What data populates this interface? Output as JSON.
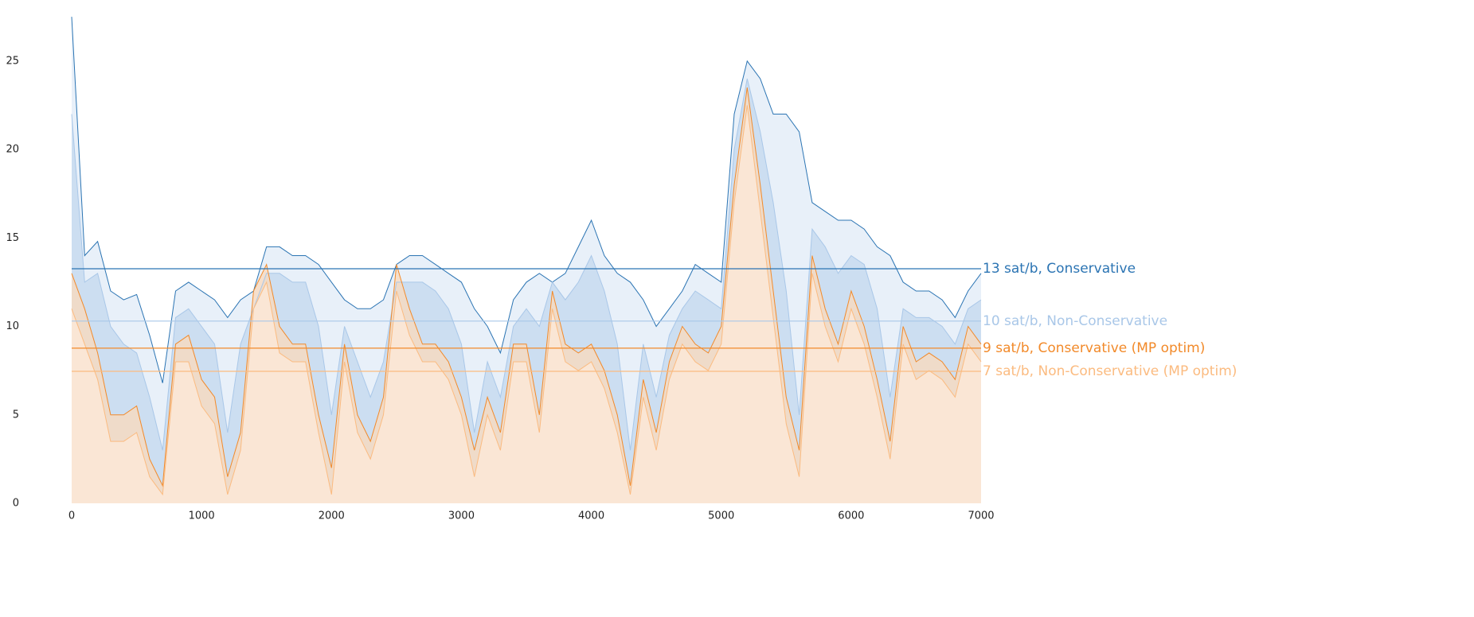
{
  "chart_data": {
    "type": "area-line",
    "x": [
      0,
      100,
      200,
      300,
      400,
      500,
      600,
      700,
      800,
      900,
      1000,
      1100,
      1200,
      1300,
      1400,
      1500,
      1600,
      1700,
      1800,
      1900,
      2000,
      2100,
      2200,
      2300,
      2400,
      2500,
      2600,
      2700,
      2800,
      2900,
      3000,
      3100,
      3200,
      3300,
      3400,
      3500,
      3600,
      3700,
      3800,
      3900,
      4000,
      4100,
      4200,
      4300,
      4400,
      4500,
      4600,
      4700,
      4800,
      4900,
      5000,
      5100,
      5200,
      5300,
      5400,
      5500,
      5600,
      5700,
      5800,
      5900,
      6000,
      6100,
      6200,
      6300,
      6400,
      6500,
      6600,
      6700,
      6800,
      6900,
      7000
    ],
    "xlim": [
      0,
      7000
    ],
    "ylim": [
      0,
      28
    ],
    "xticks": [
      0,
      1000,
      2000,
      3000,
      4000,
      5000,
      6000,
      7000
    ],
    "yticks": [
      0,
      5,
      10,
      15,
      20,
      25
    ],
    "series": [
      {
        "name": "Conservative",
        "color": "#2b74b3",
        "fill": "#e6eef8",
        "values": [
          27.5,
          14,
          14.8,
          12,
          11.5,
          11.8,
          9.5,
          6.8,
          12,
          12.5,
          12,
          11.5,
          10.5,
          11.5,
          12,
          14.5,
          14.5,
          14,
          14,
          13.5,
          12.5,
          11.5,
          11,
          11,
          11.5,
          13.5,
          14,
          14,
          13.5,
          13,
          12.5,
          11,
          10,
          8.5,
          11.5,
          12.5,
          13,
          12.5,
          13,
          14.5,
          16,
          14,
          13,
          12.5,
          11.5,
          10,
          11,
          12,
          13.5,
          13,
          12.5,
          22,
          25,
          24,
          22,
          22,
          21,
          17,
          16.5,
          16,
          16,
          15.5,
          14.5,
          14,
          12.5,
          12,
          12,
          11.5,
          10.5,
          12,
          13
        ]
      },
      {
        "name": "Non-Conservative",
        "color": "#a9c7e8",
        "fill": "#c9dcf0",
        "values": [
          22,
          12.5,
          13,
          10,
          9,
          8.5,
          6,
          3,
          10.5,
          11,
          10,
          9,
          4,
          9,
          11,
          13,
          13,
          12.5,
          12.5,
          10,
          5,
          10,
          8,
          6,
          8,
          12.5,
          12.5,
          12.5,
          12,
          11,
          9,
          4,
          8,
          6,
          10,
          11,
          10,
          12.5,
          11.5,
          12.5,
          14,
          12,
          9,
          3,
          9,
          6,
          9.5,
          11,
          12,
          11.5,
          11,
          20,
          24,
          21,
          17,
          12,
          5,
          15.5,
          14.5,
          13,
          14,
          13.5,
          11,
          6,
          11,
          10.5,
          10.5,
          10,
          9,
          11,
          11.5
        ]
      },
      {
        "name": "Conservative (MP optim)",
        "color": "#f28a2a",
        "fill": "#fbd9bb",
        "values": [
          13,
          11,
          8.5,
          5,
          5,
          5.5,
          2.5,
          1,
          9,
          9.5,
          7,
          6,
          1.5,
          4,
          12,
          13.5,
          10,
          9,
          9,
          5,
          2,
          9,
          5,
          3.5,
          6,
          13.5,
          11,
          9,
          9,
          8,
          6,
          3,
          6,
          4,
          9,
          9,
          5,
          12,
          9,
          8.5,
          9,
          7.5,
          5,
          1,
          7,
          4,
          8,
          10,
          9,
          8.5,
          10,
          18,
          23.5,
          18,
          12,
          6,
          3,
          14,
          11,
          9,
          12,
          10,
          7,
          3.5,
          10,
          8,
          8.5,
          8,
          7,
          10,
          9
        ]
      },
      {
        "name": "Non-Conservative (MP optim)",
        "color": "#fbbb80",
        "fill": "#fde9d8",
        "values": [
          11,
          9,
          7,
          3.5,
          3.5,
          4,
          1.5,
          0.5,
          8,
          8,
          5.5,
          4.5,
          0.5,
          3,
          11,
          12.5,
          8.5,
          8,
          8,
          4,
          0.5,
          8,
          4,
          2.5,
          5,
          12,
          9.5,
          8,
          8,
          7,
          5,
          1.5,
          5,
          3,
          8,
          8,
          4,
          11,
          8,
          7.5,
          8,
          6.5,
          4,
          0.5,
          6,
          3,
          7,
          9,
          8,
          7.5,
          9,
          17,
          22.5,
          16.5,
          10.5,
          4.5,
          1.5,
          13,
          10,
          8,
          11,
          9,
          6,
          2.5,
          9,
          7,
          7.5,
          7,
          6,
          9,
          8
        ]
      }
    ],
    "reference_lines": [
      {
        "value": 13.26,
        "label": "13 sat/b, Conservative",
        "color": "#2b74b3"
      },
      {
        "value": 10.3,
        "label": "10 sat/b, Non-Conservative",
        "color": "#a9c7e8"
      },
      {
        "value": 8.77,
        "label": "9 sat/b, Conservative (MP optim)",
        "color": "#f28a2a"
      },
      {
        "value": 7.46,
        "label": "7 sat/b, Non-Conservative (MP optim)",
        "color": "#fbbb80"
      }
    ]
  }
}
